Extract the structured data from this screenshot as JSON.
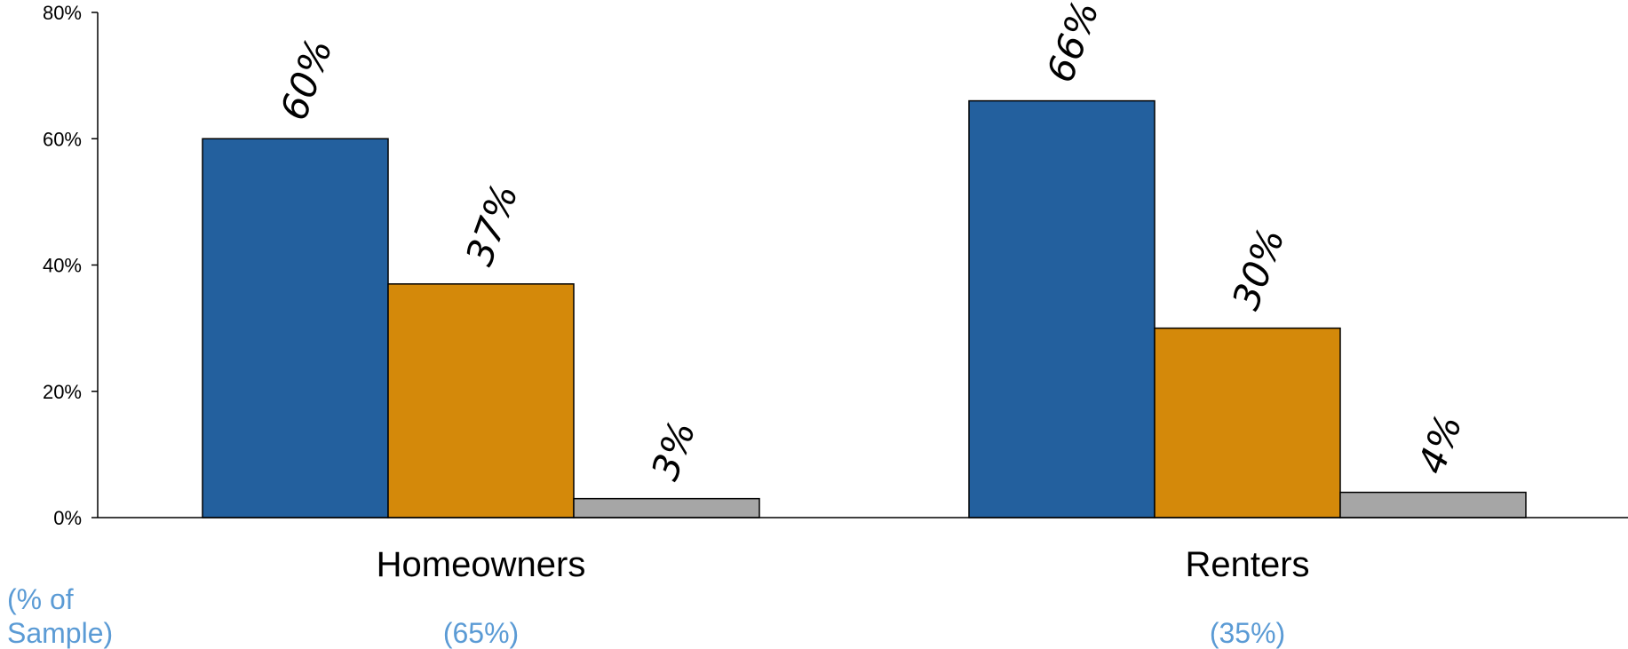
{
  "chart_data": {
    "type": "bar",
    "categories": [
      "Homeowners",
      "Renters"
    ],
    "category_notes": [
      "(65%)",
      "(35%)"
    ],
    "note_label": [
      "(% of",
      "Sample)"
    ],
    "series": [
      {
        "color": "#23609e",
        "values": [
          60,
          66
        ]
      },
      {
        "color": "#d4890a",
        "values": [
          37,
          30
        ]
      },
      {
        "color": "#a6a6a6",
        "values": [
          3,
          4
        ]
      }
    ],
    "data_labels": [
      [
        "60%",
        "66%"
      ],
      [
        "37%",
        "30%"
      ],
      [
        "3%",
        "4%"
      ]
    ],
    "y_ticks": [
      0,
      20,
      40,
      60,
      80
    ],
    "y_tick_labels": [
      "0%",
      "20%",
      "40%",
      "60%",
      "80%"
    ],
    "ylim": [
      0,
      80
    ],
    "grid": false,
    "legend": "none",
    "title": "",
    "xlabel": "",
    "ylabel": "",
    "label_color": "#5b9bd5"
  }
}
